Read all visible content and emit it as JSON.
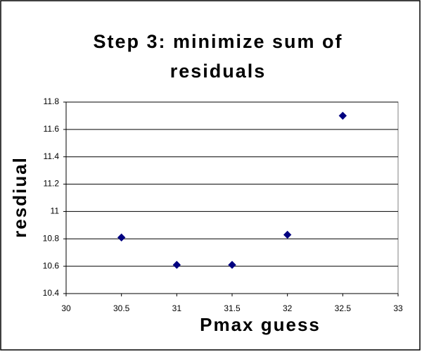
{
  "chart_data": {
    "type": "scatter",
    "title": "Step 3: minimize sum of residuals",
    "x_label": "Pmax guess",
    "y_label": "resdiual",
    "x": [
      30.5,
      31,
      31.5,
      32,
      32.5
    ],
    "values": [
      10.81,
      10.61,
      10.61,
      10.83,
      11.7
    ],
    "color": "#000080",
    "xlim": [
      30,
      33
    ],
    "xticks": [
      30,
      30.5,
      31,
      31.5,
      32,
      32.5,
      33
    ],
    "ylim": [
      10.4,
      11.8
    ],
    "yticks": [
      10.4,
      10.6,
      10.8,
      11,
      11.2,
      11.4,
      11.6,
      11.8
    ],
    "grid": true
  }
}
